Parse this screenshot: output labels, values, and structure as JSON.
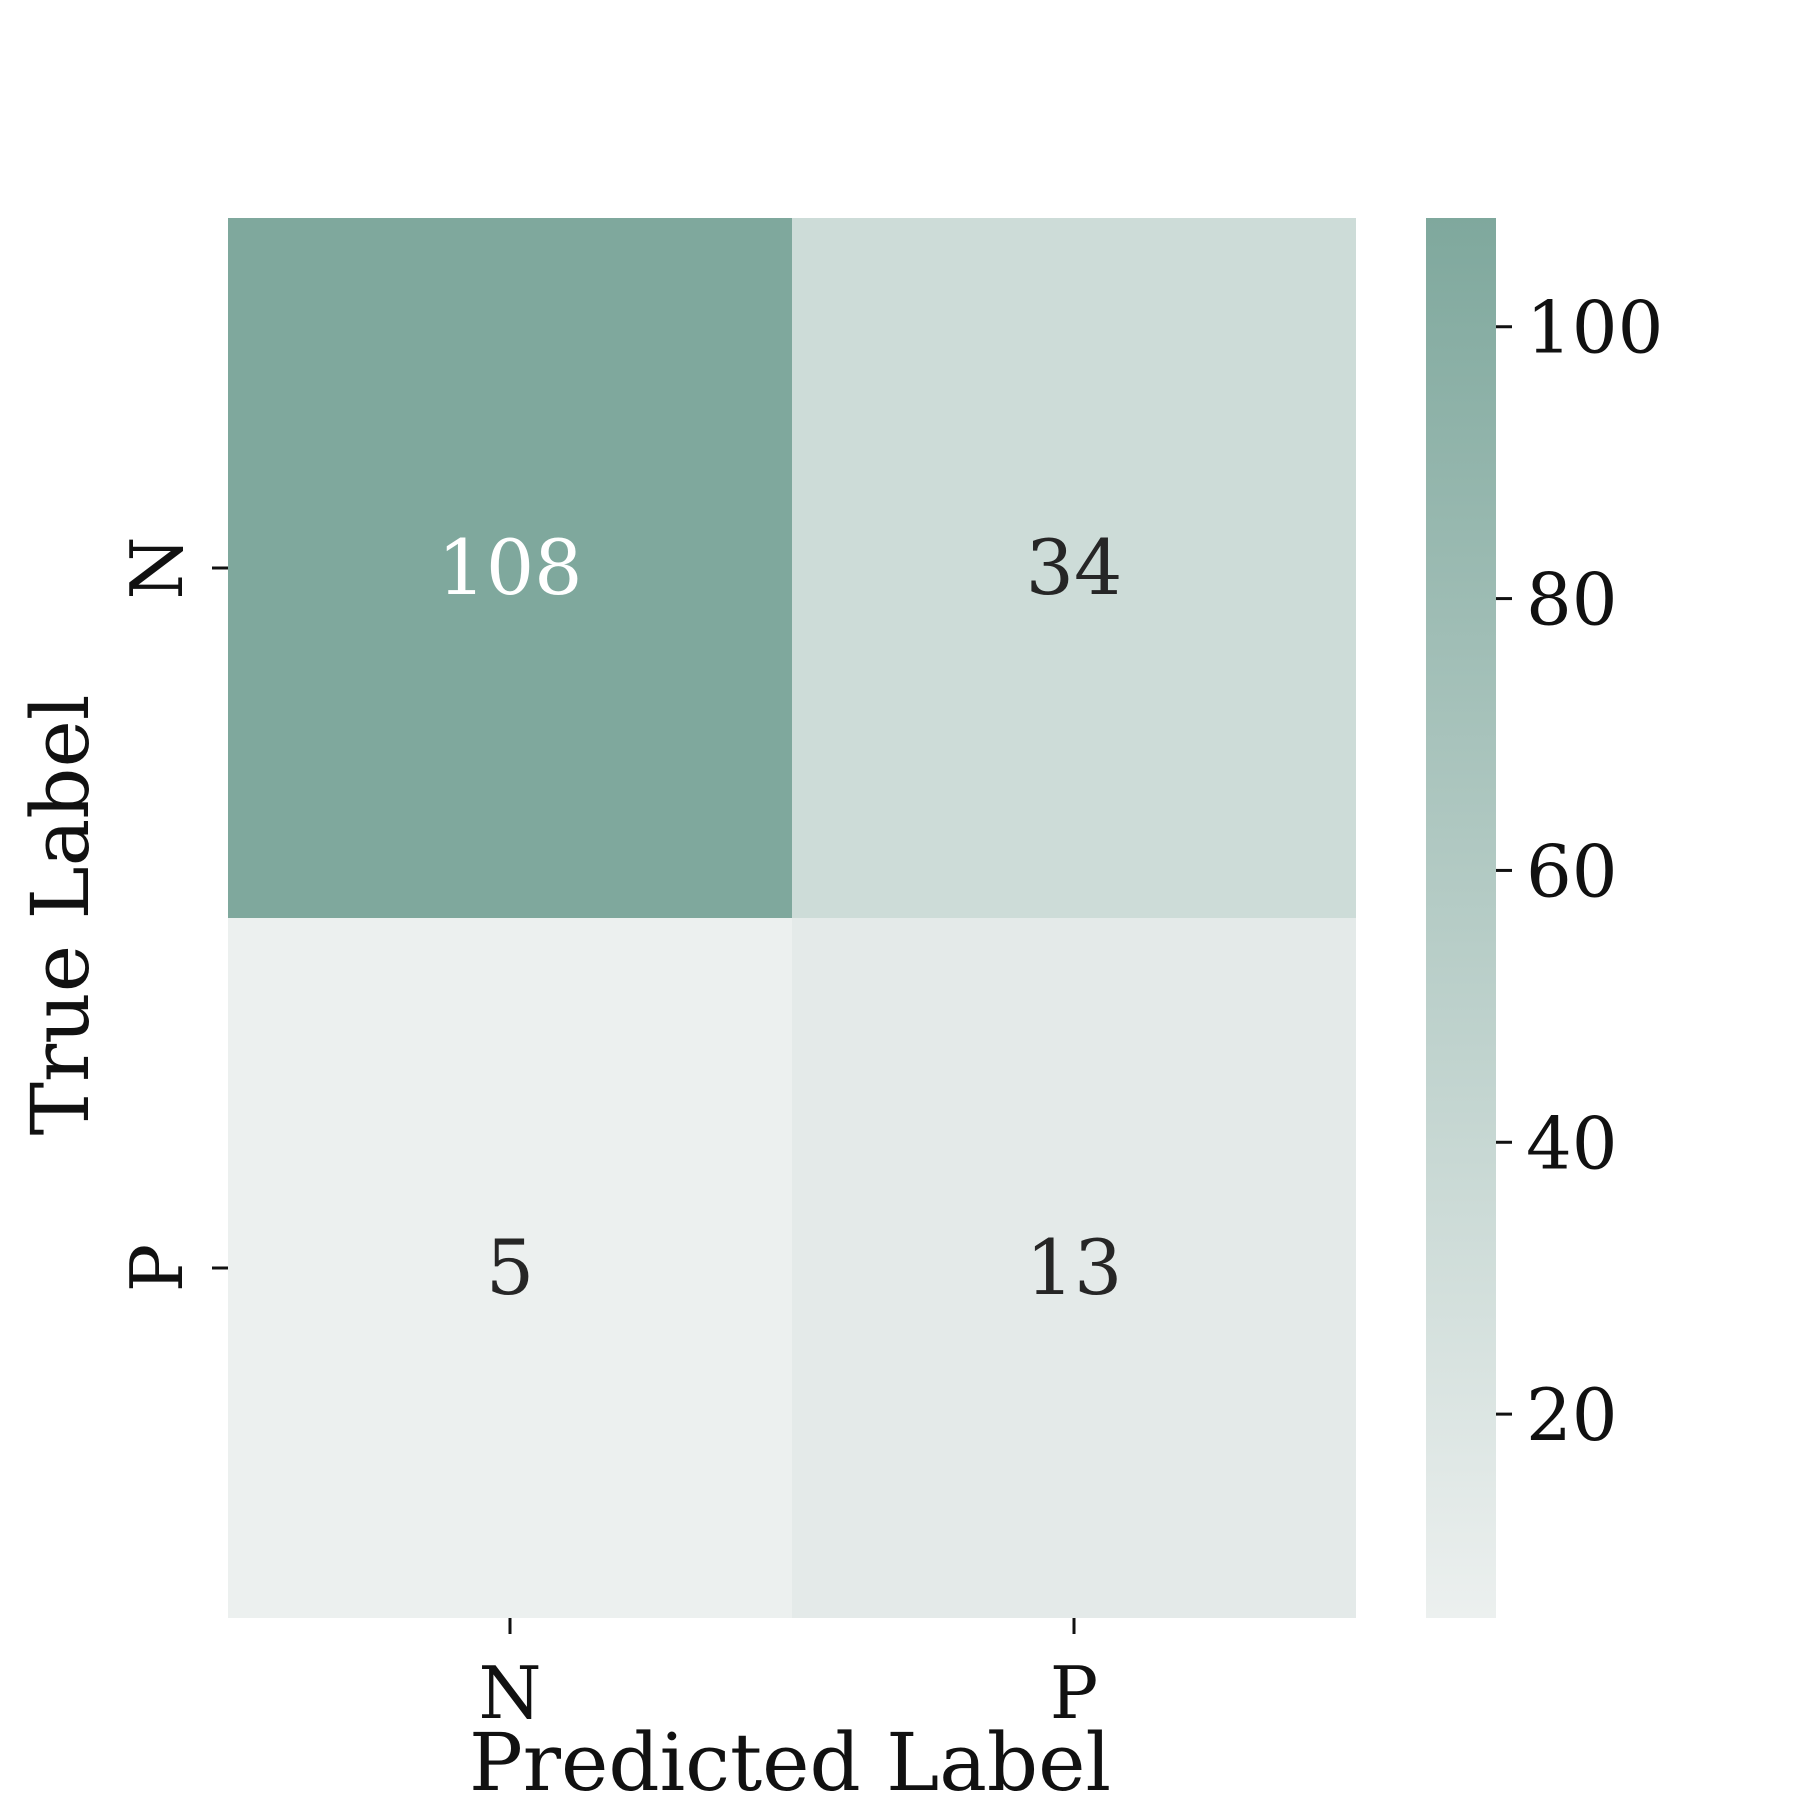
{
  "chart_data": {
    "type": "heatmap",
    "title": "",
    "xlabel": "Predicted Label",
    "ylabel": "True Label",
    "x_categories": [
      "N",
      "P"
    ],
    "y_categories": [
      "N",
      "P"
    ],
    "values": [
      [
        108,
        34
      ],
      [
        5,
        13
      ]
    ],
    "colorbar": {
      "range": [
        5,
        108
      ],
      "ticks": [
        20,
        40,
        60,
        80,
        100
      ],
      "color_low": "#ecf0ef",
      "color_high": "#7fa89d"
    },
    "cell_text_colors": {
      "dark_cell": "#ffffff",
      "light_cell": "#262626"
    }
  }
}
